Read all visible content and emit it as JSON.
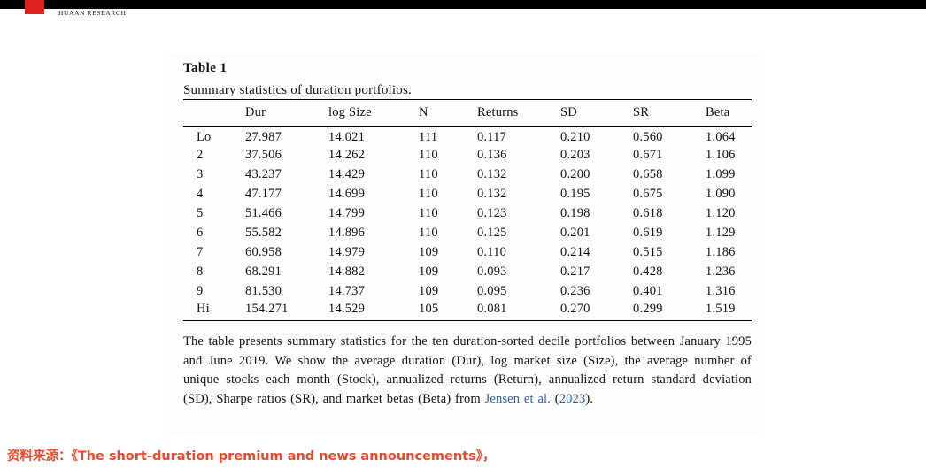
{
  "colors": {
    "topbar": "#000000",
    "logo_red": "#e01f1f",
    "link_blue": "#2b5fa8",
    "source_red": "#ea4a2c"
  },
  "header": {
    "brand_text": "HUAAN RESEARCH"
  },
  "table": {
    "title": "Table 1",
    "subtitle": "Summary statistics of duration portfolios.",
    "columns": [
      "",
      "Dur",
      "log Size",
      "N",
      "Returns",
      "SD",
      "SR",
      "Beta"
    ],
    "rows": [
      {
        "label": "Lo",
        "values": [
          "27.987",
          "14.021",
          "111",
          "0.117",
          "0.210",
          "0.560",
          "1.064"
        ]
      },
      {
        "label": "2",
        "values": [
          "37.506",
          "14.262",
          "110",
          "0.136",
          "0.203",
          "0.671",
          "1.106"
        ]
      },
      {
        "label": "3",
        "values": [
          "43.237",
          "14.429",
          "110",
          "0.132",
          "0.200",
          "0.658",
          "1.099"
        ]
      },
      {
        "label": "4",
        "values": [
          "47.177",
          "14.699",
          "110",
          "0.132",
          "0.195",
          "0.675",
          "1.090"
        ]
      },
      {
        "label": "5",
        "values": [
          "51.466",
          "14.799",
          "110",
          "0.123",
          "0.198",
          "0.618",
          "1.120"
        ]
      },
      {
        "label": "6",
        "values": [
          "55.582",
          "14.896",
          "110",
          "0.125",
          "0.201",
          "0.619",
          "1.129"
        ]
      },
      {
        "label": "7",
        "values": [
          "60.958",
          "14.979",
          "109",
          "0.110",
          "0.214",
          "0.515",
          "1.186"
        ]
      },
      {
        "label": "8",
        "values": [
          "68.291",
          "14.882",
          "109",
          "0.093",
          "0.217",
          "0.428",
          "1.236"
        ]
      },
      {
        "label": "9",
        "values": [
          "81.530",
          "14.737",
          "109",
          "0.095",
          "0.236",
          "0.401",
          "1.316"
        ]
      },
      {
        "label": "Hi",
        "values": [
          "154.271",
          "14.529",
          "105",
          "0.081",
          "0.270",
          "0.299",
          "1.519"
        ]
      }
    ],
    "caption": {
      "text_before_link": "The table presents summary statistics for the ten duration-sorted decile portfolios between January 1995 and June 2019. We show the average duration (Dur), log market size (Size), the average number of unique stocks each month (Stock), annualized returns (Return), annualized return standard deviation (SD), Sharpe ratios (SR), and market betas (Beta) from ",
      "link_author": "Jensen et al.",
      "text_between": " (",
      "link_year": "2023",
      "text_after": ")."
    }
  },
  "footer": {
    "source_label": "资料来源：",
    "source_text": "《The short-duration premium and news announcements》，"
  }
}
